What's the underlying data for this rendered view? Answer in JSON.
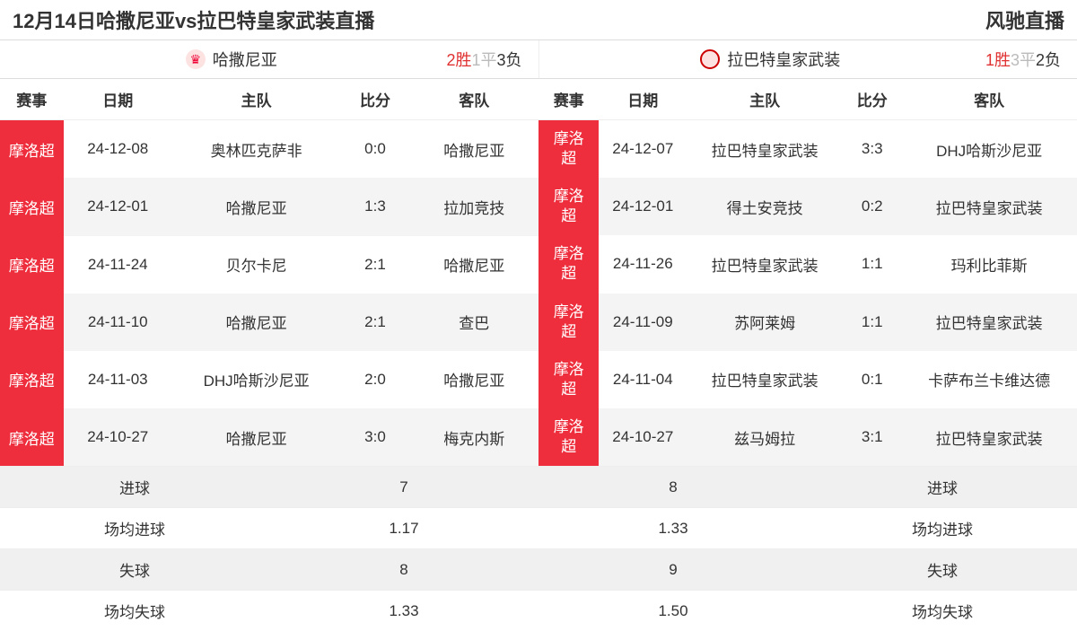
{
  "header": {
    "title": "12月14日哈撒尼亚vs拉巴特皇家武装直播",
    "site": "风驰直播"
  },
  "left_team": {
    "name": "哈撒尼亚",
    "record_win": "2胜",
    "record_draw": "1平",
    "record_loss": "3负",
    "columns": [
      "赛事",
      "日期",
      "主队",
      "比分",
      "客队"
    ],
    "rows": [
      {
        "league": "摩洛超",
        "date": "24-12-08",
        "home": "奥林匹克萨非",
        "score": "0:0",
        "away": "哈撒尼亚"
      },
      {
        "league": "摩洛超",
        "date": "24-12-01",
        "home": "哈撒尼亚",
        "score": "1:3",
        "away": "拉加竞技"
      },
      {
        "league": "摩洛超",
        "date": "24-11-24",
        "home": "贝尔卡尼",
        "score": "2:1",
        "away": "哈撒尼亚"
      },
      {
        "league": "摩洛超",
        "date": "24-11-10",
        "home": "哈撒尼亚",
        "score": "2:1",
        "away": "查巴"
      },
      {
        "league": "摩洛超",
        "date": "24-11-03",
        "home": "DHJ哈斯沙尼亚",
        "score": "2:0",
        "away": "哈撒尼亚"
      },
      {
        "league": "摩洛超",
        "date": "24-10-27",
        "home": "哈撒尼亚",
        "score": "3:0",
        "away": "梅克内斯"
      }
    ]
  },
  "right_team": {
    "name": "拉巴特皇家武装",
    "record_win": "1胜",
    "record_draw": "3平",
    "record_loss": "2负",
    "columns": [
      "赛事",
      "日期",
      "主队",
      "比分",
      "客队"
    ],
    "rows": [
      {
        "league": "摩洛超",
        "date": "24-12-07",
        "home": "拉巴特皇家武装",
        "score": "3:3",
        "away": "DHJ哈斯沙尼亚"
      },
      {
        "league": "摩洛超",
        "date": "24-12-01",
        "home": "得土安竞技",
        "score": "0:2",
        "away": "拉巴特皇家武装"
      },
      {
        "league": "摩洛超",
        "date": "24-11-26",
        "home": "拉巴特皇家武装",
        "score": "1:1",
        "away": "玛利比菲斯"
      },
      {
        "league": "摩洛超",
        "date": "24-11-09",
        "home": "苏阿莱姆",
        "score": "1:1",
        "away": "拉巴特皇家武装"
      },
      {
        "league": "摩洛超",
        "date": "24-11-04",
        "home": "拉巴特皇家武装",
        "score": "0:1",
        "away": "卡萨布兰卡维达德"
      },
      {
        "league": "摩洛超",
        "date": "24-10-27",
        "home": "兹马姆拉",
        "score": "3:1",
        "away": "拉巴特皇家武装"
      }
    ]
  },
  "summary": {
    "rows": [
      {
        "label_l": "进球",
        "val_l": "7",
        "val_r": "8",
        "label_r": "进球",
        "shade": true
      },
      {
        "label_l": "场均进球",
        "val_l": "1.17",
        "val_r": "1.33",
        "label_r": "场均进球",
        "shade": false
      },
      {
        "label_l": "失球",
        "val_l": "8",
        "val_r": "9",
        "label_r": "失球",
        "shade": true
      },
      {
        "label_l": "场均失球",
        "val_l": "1.33",
        "val_r": "1.50",
        "label_r": "场均失球",
        "shade": false
      }
    ]
  },
  "col_widths_left": {
    "league": "64px",
    "date": "110px",
    "home": "170px",
    "score": "70px",
    "away": "130px"
  },
  "col_widths_right": {
    "league": "58px",
    "date": "90px",
    "home": "160px",
    "score": "60px",
    "away": "180px"
  }
}
